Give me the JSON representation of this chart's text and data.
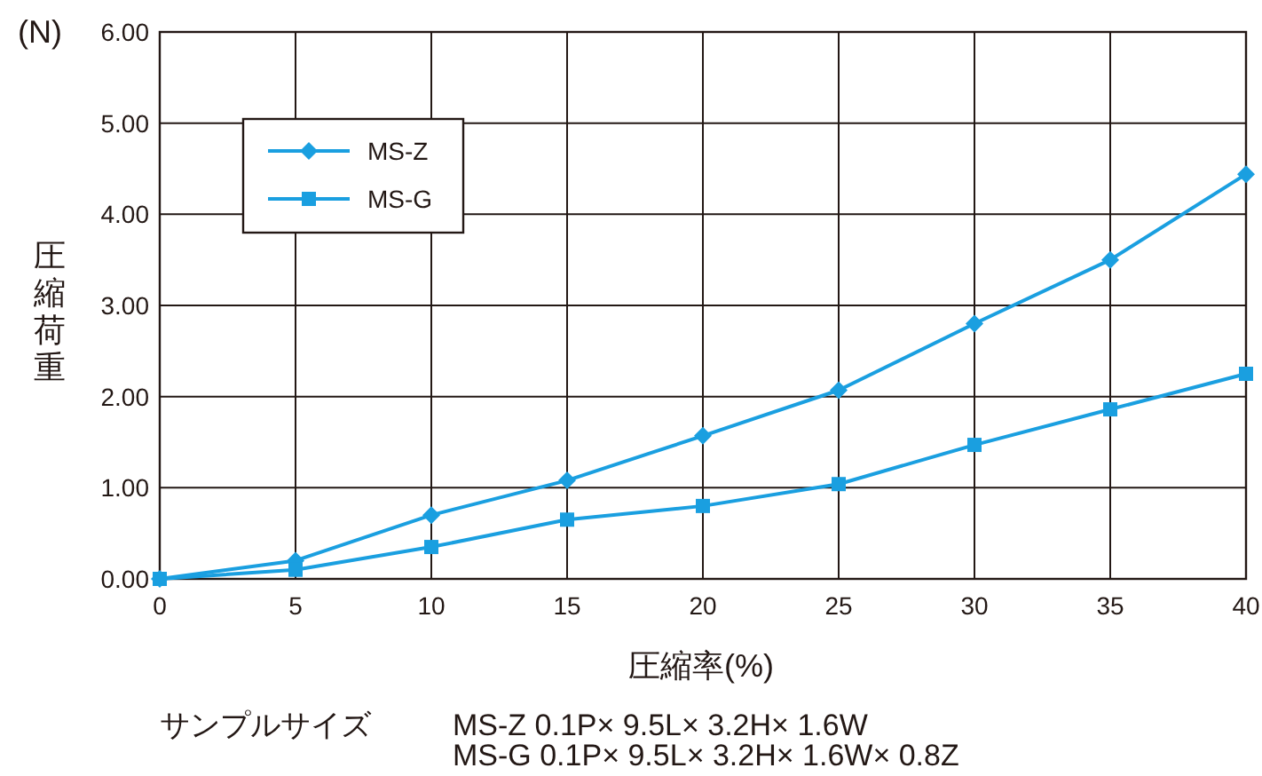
{
  "chart_data": {
    "type": "line",
    "xlabel": "圧縮率(%)",
    "ylabel": "圧縮荷重",
    "x": [
      0,
      5,
      10,
      15,
      20,
      25,
      30,
      35,
      40
    ],
    "series": [
      {
        "name": "MS-Z",
        "color": "#1a9fe0",
        "marker": "diamond",
        "values": [
          0,
          0.2,
          0.7,
          1.08,
          1.57,
          2.07,
          2.8,
          3.5,
          4.44
        ]
      },
      {
        "name": "MS-G",
        "color": "#1a9fe0",
        "marker": "square",
        "values": [
          0,
          0.1,
          0.35,
          0.65,
          0.8,
          1.04,
          1.47,
          1.86,
          2.25
        ]
      }
    ],
    "xlim": [
      0,
      40
    ],
    "ylim": [
      0,
      6
    ],
    "xticks": [
      0,
      5,
      10,
      15,
      20,
      25,
      30,
      35,
      40
    ],
    "yticks": [
      {
        "value": 0,
        "label": "0.00"
      },
      {
        "value": 1,
        "label": "1.00"
      },
      {
        "value": 2,
        "label": "2.00"
      },
      {
        "value": 3,
        "label": "3.00"
      },
      {
        "value": 4,
        "label": "4.00"
      },
      {
        "value": 5,
        "label": "5.00"
      },
      {
        "value": 6,
        "label": "6.00"
      }
    ],
    "grid": true,
    "legend": "top left",
    "line_style": "solid",
    "annotations": [
      "(N)",
      "サンプルサイズ",
      "MS-Z  0.1P× 9.5L× 3.2H× 1.6W",
      "MS-G  0.1P× 9.5L× 3.2H× 1.6W× 0.8Z"
    ]
  }
}
